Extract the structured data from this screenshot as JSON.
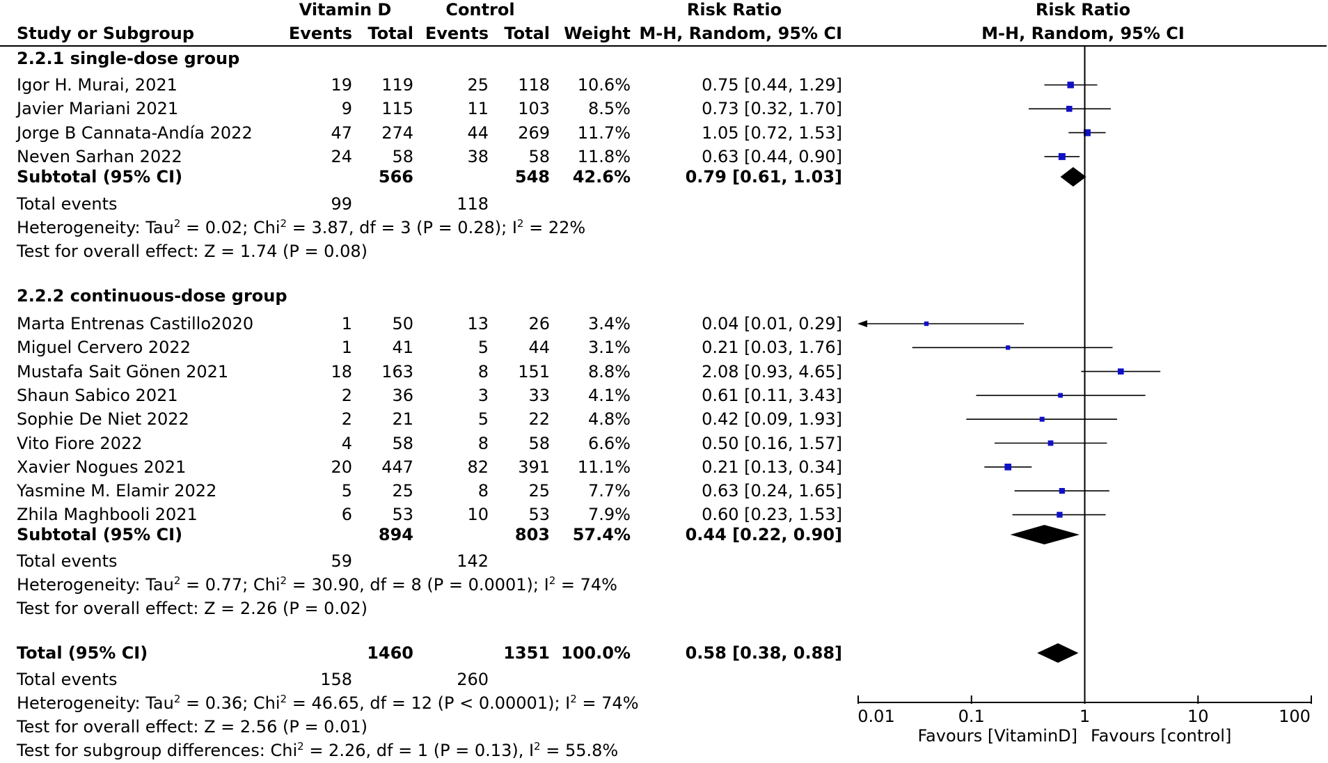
{
  "header": {
    "group_vitd": "Vitamin D",
    "group_ctrl": "Control",
    "rr_title": "Risk Ratio",
    "col_study": "Study or Subgroup",
    "col_events_vitd": "Events",
    "col_total_vitd": "Total",
    "col_events_ctrl": "Events",
    "col_total_ctrl": "Total",
    "col_weight": "Weight",
    "col_method": "M-H, Random, 95% CI",
    "plot_title": "Risk Ratio",
    "plot_method": "M-H, Random, 95% CI"
  },
  "subgroups": [
    {
      "title": "2.2.1 single-dose group",
      "studies": [
        {
          "name": "Igor H. Murai, 2021",
          "ve": "19",
          "vt": "119",
          "ce": "25",
          "ct": "118",
          "weight": "10.6%",
          "ci": "0.75 [0.44, 1.29]",
          "rr": 0.75,
          "lo": 0.44,
          "hi": 1.29
        },
        {
          "name": "Javier Mariani 2021",
          "ve": "9",
          "vt": "115",
          "ce": "11",
          "ct": "103",
          "weight": "8.5%",
          "ci": "0.73 [0.32, 1.70]",
          "rr": 0.73,
          "lo": 0.32,
          "hi": 1.7
        },
        {
          "name": "Jorge B Cannata-Andía 2022",
          "ve": "47",
          "vt": "274",
          "ce": "44",
          "ct": "269",
          "weight": "11.7%",
          "ci": "1.05 [0.72, 1.53]",
          "rr": 1.05,
          "lo": 0.72,
          "hi": 1.53
        },
        {
          "name": "Neven Sarhan 2022",
          "ve": "24",
          "vt": "58",
          "ce": "38",
          "ct": "58",
          "weight": "11.8%",
          "ci": "0.63 [0.44, 0.90]",
          "rr": 0.63,
          "lo": 0.44,
          "hi": 0.9
        }
      ],
      "subtotal": {
        "label": "Subtotal (95% CI)",
        "vt": "566",
        "ct": "548",
        "weight": "42.6%",
        "ci": "0.79 [0.61, 1.03]",
        "rr": 0.79,
        "lo": 0.61,
        "hi": 1.03
      },
      "events_label": "Total events",
      "events_v": "99",
      "events_c": "118",
      "het": {
        "a": "Heterogeneity: Tau",
        "b": " = 0.02; Chi",
        "c": " = 3.87, df = 3 (P = 0.28); I",
        "d": " = 22%"
      },
      "overall": "Test for overall effect: Z = 1.74 (P = 0.08)"
    },
    {
      "title": "2.2.2 continuous-dose group",
      "studies": [
        {
          "name": "Marta Entrenas Castillo2020",
          "ve": "1",
          "vt": "50",
          "ce": "13",
          "ct": "26",
          "weight": "3.4%",
          "ci": "0.04 [0.01, 0.29]",
          "rr": 0.04,
          "lo": 0.01,
          "hi": 0.29
        },
        {
          "name": "Miguel Cervero 2022",
          "ve": "1",
          "vt": "41",
          "ce": "5",
          "ct": "44",
          "weight": "3.1%",
          "ci": "0.21 [0.03, 1.76]",
          "rr": 0.21,
          "lo": 0.03,
          "hi": 1.76
        },
        {
          "name": "Mustafa Sait Gönen 2021",
          "ve": "18",
          "vt": "163",
          "ce": "8",
          "ct": "151",
          "weight": "8.8%",
          "ci": "2.08 [0.93, 4.65]",
          "rr": 2.08,
          "lo": 0.93,
          "hi": 4.65
        },
        {
          "name": "Shaun Sabico  2021",
          "ve": "2",
          "vt": "36",
          "ce": "3",
          "ct": "33",
          "weight": "4.1%",
          "ci": "0.61 [0.11, 3.43]",
          "rr": 0.61,
          "lo": 0.11,
          "hi": 3.43
        },
        {
          "name": "Sophie De Niet 2022",
          "ve": "2",
          "vt": "21",
          "ce": "5",
          "ct": "22",
          "weight": "4.8%",
          "ci": "0.42 [0.09, 1.93]",
          "rr": 0.42,
          "lo": 0.09,
          "hi": 1.93
        },
        {
          "name": "Vito Fiore 2022",
          "ve": "4",
          "vt": "58",
          "ce": "8",
          "ct": "58",
          "weight": "6.6%",
          "ci": "0.50 [0.16, 1.57]",
          "rr": 0.5,
          "lo": 0.16,
          "hi": 1.57
        },
        {
          "name": "Xavier Nogues 2021",
          "ve": "20",
          "vt": "447",
          "ce": "82",
          "ct": "391",
          "weight": "11.1%",
          "ci": "0.21 [0.13, 0.34]",
          "rr": 0.21,
          "lo": 0.13,
          "hi": 0.34
        },
        {
          "name": "Yasmine M. Elamir 2022",
          "ve": "5",
          "vt": "25",
          "ce": "8",
          "ct": "25",
          "weight": "7.7%",
          "ci": "0.63 [0.24, 1.65]",
          "rr": 0.63,
          "lo": 0.24,
          "hi": 1.65
        },
        {
          "name": "Zhila Maghbooli 2021",
          "ve": "6",
          "vt": "53",
          "ce": "10",
          "ct": "53",
          "weight": "7.9%",
          "ci": "0.60 [0.23, 1.53]",
          "rr": 0.6,
          "lo": 0.23,
          "hi": 1.53
        }
      ],
      "subtotal": {
        "label": "Subtotal (95% CI)",
        "vt": "894",
        "ct": "803",
        "weight": "57.4%",
        "ci": "0.44 [0.22, 0.90]",
        "rr": 0.44,
        "lo": 0.22,
        "hi": 0.9
      },
      "events_label": "Total events",
      "events_v": "59",
      "events_c": "142",
      "het": {
        "a": "Heterogeneity: Tau",
        "b": " = 0.77; Chi",
        "c": " = 30.90, df = 8 (P = 0.0001); I",
        "d": " = 74%"
      },
      "overall": "Test for overall effect: Z = 2.26 (P = 0.02)"
    }
  ],
  "total": {
    "label": "Total (95% CI)",
    "vt": "1460",
    "ct": "1351",
    "weight": "100.0%",
    "ci": "0.58 [0.38, 0.88]",
    "rr": 0.58,
    "lo": 0.38,
    "hi": 0.88
  },
  "total_events": {
    "label": "Total events",
    "v": "158",
    "c": "260"
  },
  "total_het": {
    "a": "Heterogeneity: Tau",
    "b": " = 0.36; Chi",
    "c": " = 46.65, df = 12 (P < 0.00001); I",
    "d": " = 74%"
  },
  "total_overall": "Test for overall effect: Z = 2.56 (P = 0.01)",
  "subgroup_diff": {
    "a": "Test for subgroup differences: Chi",
    "b": " = 2.26, df = 1 (P = 0.13), I",
    "c": " = 55.8%"
  },
  "superscript": "2",
  "chart_data": {
    "type": "forest",
    "scale": "log",
    "xlim": [
      0.01,
      100
    ],
    "ticks": [
      0.01,
      0.1,
      1,
      10,
      100
    ],
    "tick_labels": [
      "0.01",
      "0.1",
      "1",
      "10",
      "100"
    ],
    "reference_line": 1,
    "favours_left": "Favours [VitaminD]",
    "favours_right": "Favours [control]",
    "marker_color": "#1010c8"
  }
}
